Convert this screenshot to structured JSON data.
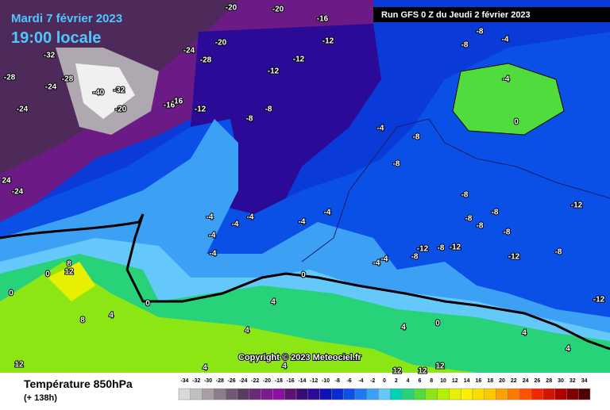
{
  "header": {
    "date": "Mardi 7 février 2023",
    "time": "19:00 locale",
    "run": "Run GFS 0 Z du Jeudi 2 février 2023"
  },
  "copyright": "Copyright © 2023 Meteociel.fr",
  "legend": {
    "title": "Température 850hPa",
    "lead": "(+ 138h)",
    "ticks": [
      -34,
      -32,
      -30,
      -28,
      -26,
      -24,
      -22,
      -20,
      -18,
      -16,
      -14,
      -12,
      -10,
      -8,
      -6,
      -4,
      -2,
      0,
      2,
      4,
      6,
      8,
      10,
      12,
      14,
      16,
      18,
      20,
      22,
      24,
      26,
      28,
      30,
      32,
      34
    ],
    "colors": [
      "#d9d9d9",
      "#bfbfbf",
      "#a6a0a6",
      "#8c7c8c",
      "#705a72",
      "#5a3a5e",
      "#6b2a78",
      "#7d1a8e",
      "#8c10a0",
      "#5a1470",
      "#3a0a78",
      "#2a0a96",
      "#1010b4",
      "#0a2ad2",
      "#0a50e6",
      "#1e78f0",
      "#3ca0f5",
      "#64c8fa",
      "#00d2b4",
      "#28d278",
      "#50dc3c",
      "#8ce614",
      "#b4f000",
      "#e6f000",
      "#fff000",
      "#ffdc00",
      "#ffc800",
      "#ffa000",
      "#ff7800",
      "#ff5000",
      "#f02800",
      "#d21400",
      "#b40000",
      "#820000",
      "#500000"
    ]
  },
  "map_labels": [
    -20,
    -20,
    -16,
    -12,
    -12,
    -12,
    -20,
    -24,
    -28,
    -32,
    -28,
    -24,
    -28,
    -40,
    -32,
    -24,
    -20,
    -16,
    -16,
    -12,
    -8,
    -8,
    -4,
    -8,
    -8,
    -8,
    -4,
    -8,
    -4,
    0,
    -8,
    -12,
    -8,
    -8,
    -8,
    -8,
    -12,
    -8,
    -12,
    -8,
    -12,
    -8,
    -12,
    -4,
    -4,
    -4,
    -4,
    -4,
    -4,
    -4,
    -4,
    -4,
    0,
    0,
    4,
    8,
    12,
    0,
    0,
    8,
    4,
    4,
    4,
    0,
    4,
    4,
    12,
    4,
    4,
    12,
    12,
    12,
    24,
    -24
  ]
}
